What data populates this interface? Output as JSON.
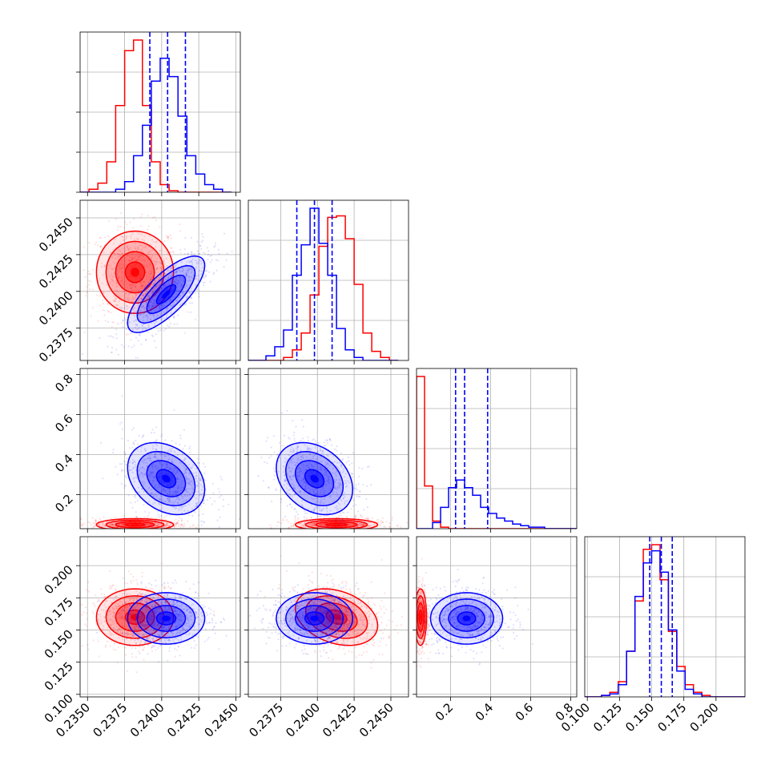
{
  "colors": {
    "red": "#ff0000",
    "blue": "#0000ff",
    "grid": "#b0b0b0",
    "axes": "#000000"
  },
  "chart_data": {
    "type": "corner",
    "grid": true,
    "legend": "none",
    "parameters": [
      {
        "range": [
          0.2345,
          0.2453
        ],
        "ticks": [
          "0.2350",
          "0.2375",
          "0.2400",
          "0.2425",
          "0.2450"
        ],
        "tick_values": [
          0.235,
          0.2375,
          0.24,
          0.2425,
          0.245
        ]
      },
      {
        "range": [
          0.2353,
          0.2462
        ],
        "ticks": [
          "0.2375",
          "0.2400",
          "0.2425",
          "0.2450"
        ],
        "tick_values": [
          0.2375,
          0.24,
          0.2425,
          0.245
        ]
      },
      {
        "range": [
          0.03,
          0.83
        ],
        "ticks": [
          "0.2",
          "0.4",
          "0.6",
          "0.8"
        ],
        "tick_values": [
          0.2,
          0.4,
          0.6,
          0.8
        ]
      },
      {
        "range": [
          0.098,
          0.2225
        ],
        "ticks": [
          "0.100",
          "0.125",
          "0.150",
          "0.175",
          "0.200"
        ],
        "tick_values": [
          0.1,
          0.125,
          0.15,
          0.175,
          0.2
        ]
      }
    ],
    "series": [
      {
        "color": "red",
        "mean": [
          0.2382,
          0.2413,
          0.05,
          0.16
        ],
        "sd": [
          0.0013,
          0.0014,
          0.015,
          0.011
        ],
        "corr": [
          [
            1,
            0,
            0,
            0
          ],
          [
            0,
            1,
            0,
            -0.3
          ],
          [
            0,
            0,
            1,
            0
          ],
          [
            0,
            -0.3,
            0,
            1
          ]
        ]
      },
      {
        "color": "blue",
        "mean": [
          0.2403,
          0.2398,
          0.28,
          0.159
        ],
        "sd": [
          0.0013,
          0.0013,
          0.09,
          0.01
        ],
        "corr": [
          [
            1,
            0.75,
            -0.3,
            0
          ],
          [
            0.75,
            1,
            -0.3,
            0
          ],
          [
            -0.3,
            -0.3,
            1,
            0
          ],
          [
            0,
            0,
            0,
            1
          ]
        ]
      }
    ],
    "quantile_lines": [
      [
        0.2392,
        0.2404,
        0.2416
      ],
      [
        0.2386,
        0.2398,
        0.241
      ],
      [
        0.225,
        0.27,
        0.385
      ],
      [
        0.1485,
        0.1575,
        0.166
      ]
    ],
    "histograms": [
      {
        "bin_edges": [
          0.2345,
          0.2351,
          0.2357,
          0.2363,
          0.2369,
          0.2375,
          0.2381,
          0.2387,
          0.2393,
          0.2399,
          0.2405,
          0.2411,
          0.2417,
          0.2423,
          0.2429,
          0.2435,
          0.2441,
          0.2447
        ],
        "red": [
          0,
          0.02,
          0.06,
          0.2,
          0.57,
          0.93,
          1.0,
          0.57,
          0.2,
          0.05,
          0.01,
          0,
          0,
          0,
          0,
          0,
          0
        ],
        "blue": [
          0,
          0,
          0,
          0,
          0.02,
          0.07,
          0.24,
          0.44,
          0.73,
          0.88,
          0.76,
          0.5,
          0.24,
          0.12,
          0.05,
          0.02,
          0
        ]
      },
      {
        "bin_edges": [
          0.2353,
          0.2359,
          0.2365,
          0.2371,
          0.2377,
          0.2383,
          0.2389,
          0.2395,
          0.2401,
          0.2407,
          0.2413,
          0.2419,
          0.2425,
          0.2431,
          0.2437,
          0.2443,
          0.2449,
          0.2455
        ],
        "red": [
          0,
          0,
          0,
          0,
          0.02,
          0.07,
          0.18,
          0.43,
          0.75,
          0.94,
          0.95,
          0.8,
          0.5,
          0.18,
          0.06,
          0.02,
          0
        ],
        "blue": [
          0,
          0,
          0.03,
          0.09,
          0.2,
          0.56,
          0.76,
          1.0,
          0.77,
          0.56,
          0.21,
          0.07,
          0.02,
          0,
          0,
          0,
          0
        ]
      },
      {
        "bin_edges": [
          0.03,
          0.07,
          0.11,
          0.15,
          0.19,
          0.23,
          0.27,
          0.31,
          0.35,
          0.39,
          0.43,
          0.47,
          0.51,
          0.55,
          0.59,
          0.63,
          0.67,
          0.71,
          0.75,
          0.79,
          0.83
        ],
        "red": [
          1.0,
          0.28,
          0.05,
          0.01,
          0,
          0,
          0,
          0,
          0,
          0,
          0,
          0,
          0,
          0,
          0,
          0,
          0,
          0,
          0,
          0
        ],
        "blue": [
          0,
          0,
          0.04,
          0.14,
          0.27,
          0.32,
          0.27,
          0.22,
          0.14,
          0.1,
          0.07,
          0.05,
          0.03,
          0.02,
          0.01,
          0.01,
          0,
          0,
          0,
          0
        ]
      },
      {
        "bin_edges": [
          0.098,
          0.1045,
          0.111,
          0.1175,
          0.124,
          0.1305,
          0.137,
          0.1435,
          0.15,
          0.1565,
          0.163,
          0.1695,
          0.176,
          0.1825,
          0.189,
          0.1955,
          0.202,
          0.2085,
          0.215,
          0.2225
        ],
        "red": [
          0,
          0,
          0.01,
          0.03,
          0.1,
          0.3,
          0.63,
          0.97,
          1.0,
          0.77,
          0.43,
          0.2,
          0.08,
          0.03,
          0.01,
          0,
          0,
          0,
          0
        ],
        "blue": [
          0,
          0,
          0.01,
          0.02,
          0.08,
          0.3,
          0.66,
          0.88,
          0.96,
          0.82,
          0.44,
          0.17,
          0.05,
          0.02,
          0,
          0,
          0,
          0,
          0
        ]
      }
    ]
  }
}
